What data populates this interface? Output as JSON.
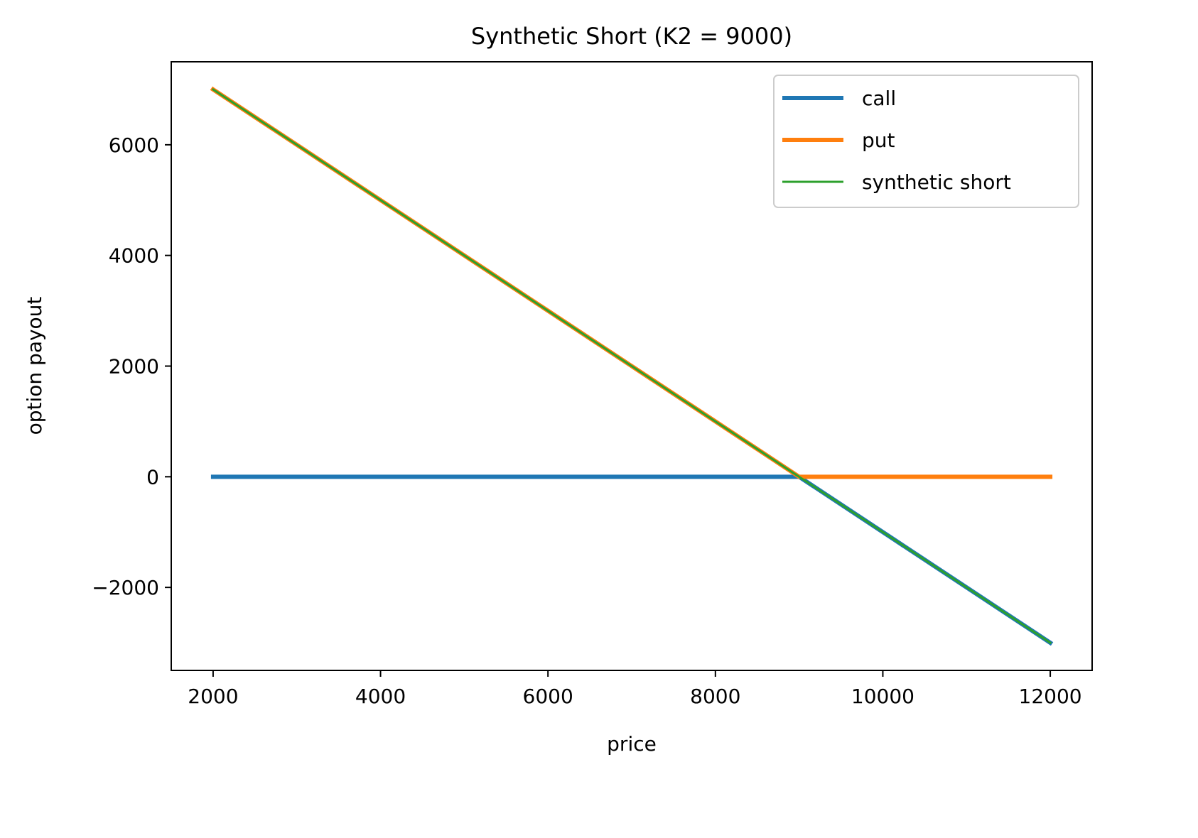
{
  "chart_data": {
    "type": "line",
    "title": "Synthetic Short (K2 = 9000)",
    "xlabel": "price",
    "ylabel": "option payout",
    "xlim": [
      1500,
      12500
    ],
    "ylim": [
      -3500,
      7500
    ],
    "xticks": [
      2000,
      4000,
      6000,
      8000,
      10000,
      12000
    ],
    "xtick_labels": [
      "2000",
      "4000",
      "6000",
      "8000",
      "10000",
      "12000"
    ],
    "yticks": [
      -2000,
      0,
      2000,
      4000,
      6000
    ],
    "ytick_labels": [
      "−2000",
      "0",
      "2000",
      "4000",
      "6000"
    ],
    "grid": false,
    "legend_position": "top-right",
    "series": [
      {
        "name": "call",
        "color": "#1f77b4",
        "x": [
          2000,
          9000,
          12000
        ],
        "y": [
          0,
          0,
          -3000
        ]
      },
      {
        "name": "put",
        "color": "#ff7f0e",
        "x": [
          2000,
          9000,
          12000
        ],
        "y": [
          7000,
          0,
          0
        ]
      },
      {
        "name": "synthetic short",
        "color": "#2ca02c",
        "x": [
          2000,
          9000,
          12000
        ],
        "y": [
          7000,
          0,
          -3000
        ]
      }
    ]
  }
}
